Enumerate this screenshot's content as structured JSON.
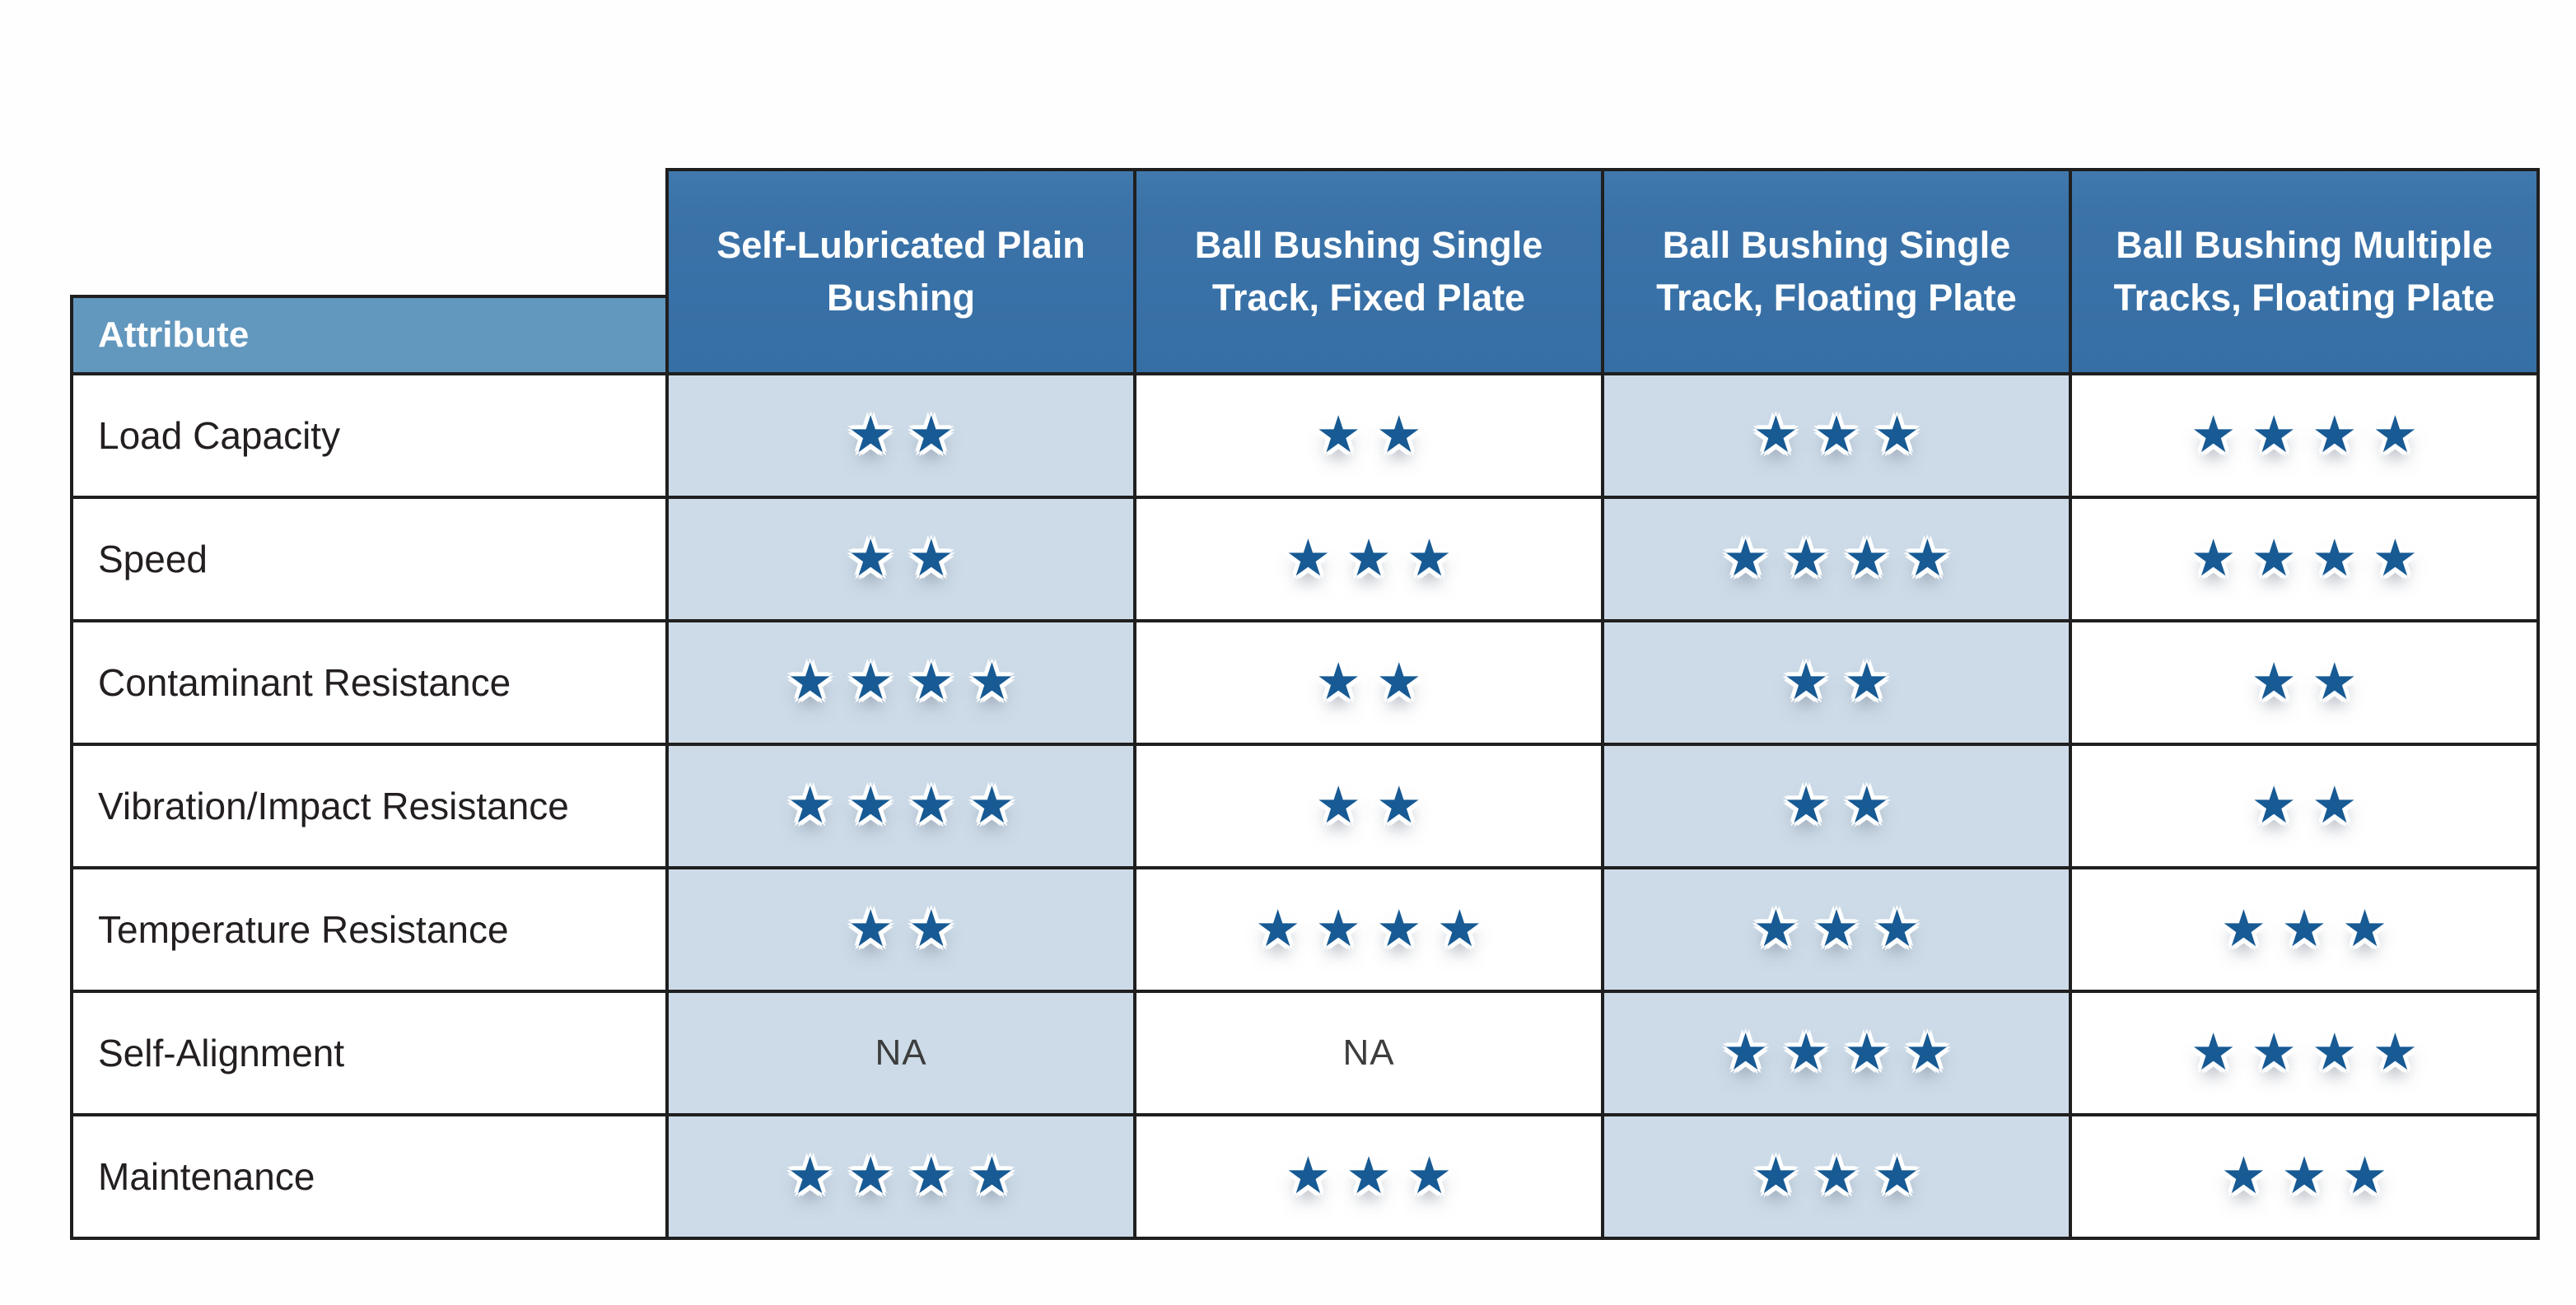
{
  "table": {
    "attribute_header": "Attribute",
    "na_label": "NA",
    "star_glyph": "★",
    "star_icon_name": "star-icon",
    "max_stars": 4,
    "columns": [
      "Self-Lubricated Plain Bushing",
      "Ball Bushing Single Track, Fixed Plate",
      "Ball Bushing Single Track, Floating Plate",
      "Ball Bushing Multiple Tracks, Floating Plate"
    ],
    "rows": [
      {
        "label": "Load Capacity",
        "ratings": [
          2,
          2,
          3,
          4
        ]
      },
      {
        "label": "Speed",
        "ratings": [
          2,
          3,
          4,
          4
        ]
      },
      {
        "label": "Contaminant Resistance",
        "ratings": [
          4,
          2,
          2,
          2
        ]
      },
      {
        "label": "Vibration/Impact Resistance",
        "ratings": [
          4,
          2,
          2,
          2
        ]
      },
      {
        "label": "Temperature Resistance",
        "ratings": [
          2,
          4,
          3,
          3
        ]
      },
      {
        "label": "Self-Alignment",
        "ratings": [
          "NA",
          "NA",
          4,
          4
        ]
      },
      {
        "label": "Maintenance",
        "ratings": [
          4,
          3,
          3,
          3
        ]
      }
    ],
    "colors": {
      "header_bg": "#3b73a9",
      "attribute_header_bg": "#6297be",
      "shaded_cell_bg": "#cddbe8",
      "star_fill": "#175a94",
      "border": "#1f1f1f",
      "row_label_text": "#231f20",
      "header_text": "#ffffff",
      "na_text": "#3d3d3d"
    }
  },
  "chart_data": {
    "type": "table",
    "title": "Bushing attribute comparison (star ratings, 1-4)",
    "columns": [
      "Attribute",
      "Self-Lubricated Plain Bushing",
      "Ball Bushing Single Track, Fixed Plate",
      "Ball Bushing Single Track, Floating Plate",
      "Ball Bushing Multiple Tracks, Floating Plate"
    ],
    "rows": [
      [
        "Load Capacity",
        2,
        2,
        3,
        4
      ],
      [
        "Speed",
        2,
        3,
        4,
        4
      ],
      [
        "Contaminant Resistance",
        4,
        2,
        2,
        2
      ],
      [
        "Vibration/Impact Resistance",
        4,
        2,
        2,
        2
      ],
      [
        "Temperature Resistance",
        2,
        4,
        3,
        3
      ],
      [
        "Self-Alignment",
        "NA",
        "NA",
        4,
        4
      ],
      [
        "Maintenance",
        4,
        3,
        3,
        3
      ]
    ],
    "rating_scale": {
      "min": 1,
      "max": 4,
      "unit": "stars",
      "not_applicable": "NA"
    },
    "layout": {
      "shaded_columns": [
        "Self-Lubricated Plain Bushing",
        "Ball Bushing Single Track, Floating Plate"
      ],
      "legend": "none",
      "grid": "full black cell borders"
    }
  }
}
